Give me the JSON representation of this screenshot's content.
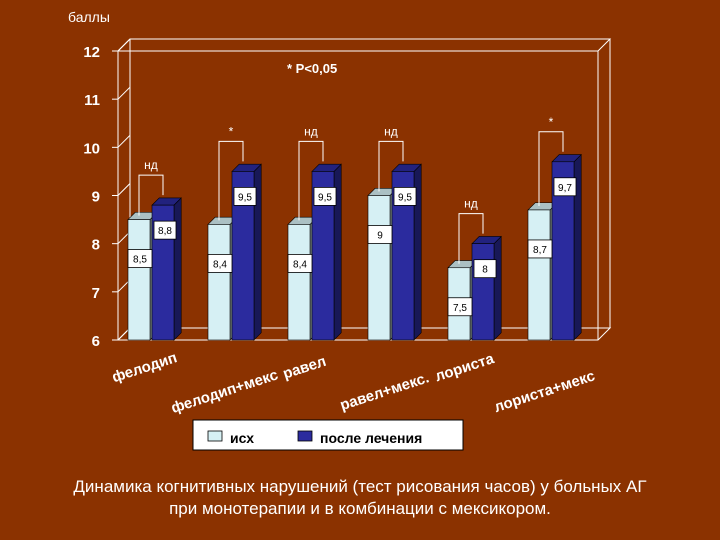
{
  "chart_data": {
    "type": "bar",
    "ylabel": "баллы",
    "ylim": [
      6,
      12
    ],
    "yticks": [
      "6",
      "7",
      "8",
      "9",
      "10",
      "11",
      "12"
    ],
    "categories": [
      "фелодип",
      "фелодип+мекс",
      "равел",
      "равел+мекс.",
      "лориста",
      "лориста+мекс"
    ],
    "series": [
      {
        "name": "исх",
        "values": [
          8.5,
          8.4,
          8.4,
          9.0,
          7.5,
          8.7
        ],
        "labels": [
          "8,5",
          "8,4",
          "8,4",
          "9",
          "7,5",
          "8,7"
        ],
        "color": "#D6F0F4"
      },
      {
        "name": "после лечения",
        "values": [
          8.8,
          9.5,
          9.5,
          9.5,
          8.0,
          9.7
        ],
        "labels": [
          "8,8",
          "9,5",
          "9,5",
          "9,5",
          "8",
          "9,7"
        ],
        "color": "#2B2B9E"
      }
    ],
    "significance": [
      "нд",
      "*",
      "нд",
      "нд",
      "нд",
      "*"
    ],
    "legend_note": "* P<0,05",
    "legend": "bottom",
    "grid": false
  },
  "caption": {
    "line1": "Динамика когнитивных нарушений (тест рисования часов) у больных АГ",
    "line2": "при монотерапии и в комбинации с мексикором."
  }
}
